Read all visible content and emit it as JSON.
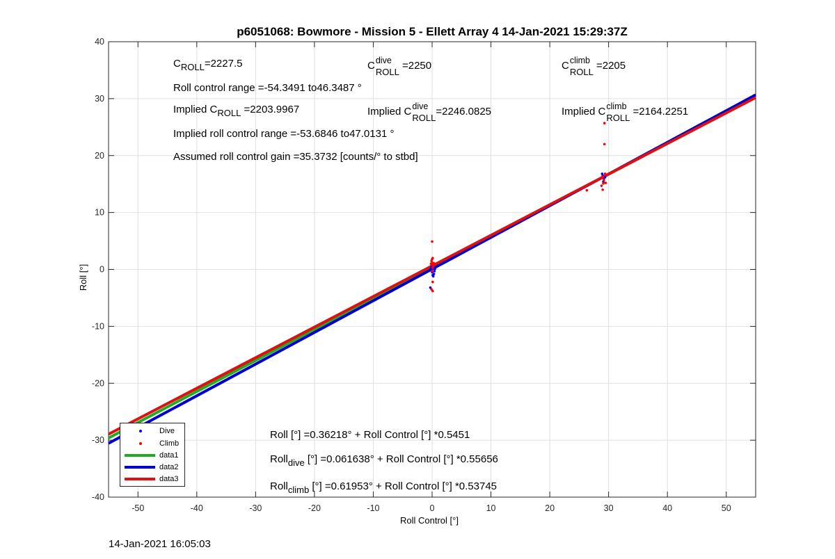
{
  "chart_data": {
    "type": "scatter",
    "title": "p6051068: Bowmore - Mission 5 - Ellett Array 4 14-Jan-2021 15:29:37Z",
    "xlabel": "Roll Control [°]",
    "ylabel": "Roll [°]",
    "xlim": [
      -55,
      55
    ],
    "ylim": [
      -40,
      40
    ],
    "xticks": [
      -50,
      -40,
      -30,
      -20,
      -10,
      0,
      10,
      20,
      30,
      40,
      50
    ],
    "yticks": [
      -40,
      -30,
      -20,
      -10,
      0,
      10,
      20,
      30,
      40
    ],
    "grid": true,
    "legend_position": "bottom-left",
    "series": [
      {
        "name": "Dive",
        "kind": "points",
        "color": "#0000ff",
        "points": [
          [
            0,
            0
          ],
          [
            0,
            -0.5
          ],
          [
            0,
            0.5
          ],
          [
            0.1,
            -1
          ],
          [
            0.2,
            0.3
          ],
          [
            -0.1,
            -0.2
          ],
          [
            0.3,
            -0.8
          ],
          [
            -0.2,
            0.2
          ],
          [
            0.1,
            0.8
          ],
          [
            0.4,
            -0.3
          ],
          [
            -0.3,
            -3.2
          ],
          [
            0.2,
            -1.2
          ],
          [
            0.5,
            0.1
          ],
          [
            -0.1,
            0.6
          ],
          [
            0.3,
            0.4
          ],
          [
            29,
            16.5
          ],
          [
            29.2,
            15.9
          ],
          [
            29.4,
            16.2
          ],
          [
            29.1,
            15.4
          ],
          [
            28.9,
            16.8
          ]
        ]
      },
      {
        "name": "Climb",
        "kind": "points",
        "color": "#ff0000",
        "points": [
          [
            0,
            0.8
          ],
          [
            0,
            1.2
          ],
          [
            0,
            1.8
          ],
          [
            0.1,
            0.3
          ],
          [
            -0.1,
            1.5
          ],
          [
            0,
            -0.3
          ],
          [
            0.1,
            -2.2
          ],
          [
            -0.1,
            -3.5
          ],
          [
            0.1,
            -3.8
          ],
          [
            0,
            4.9
          ],
          [
            0.2,
            0.6
          ],
          [
            -0.2,
            1.0
          ],
          [
            0.1,
            2.0
          ],
          [
            0.3,
            1.1
          ],
          [
            29.3,
            25.7
          ],
          [
            29.3,
            22
          ],
          [
            29,
            16.3
          ],
          [
            29.2,
            15.7
          ],
          [
            29.5,
            15.2
          ],
          [
            28.8,
            14.7
          ],
          [
            29,
            14
          ],
          [
            26.3,
            13.9
          ],
          [
            29.4,
            16.8
          ],
          [
            29.1,
            15.1
          ],
          [
            28.9,
            16.1
          ]
        ]
      },
      {
        "name": "data1",
        "kind": "fit",
        "color": "#22aa22",
        "intercept": 0.36218,
        "slope": 0.5451
      },
      {
        "name": "data2",
        "kind": "fit",
        "color": "#0000cc",
        "intercept": 0.061638,
        "slope": 0.55656
      },
      {
        "name": "data3",
        "kind": "fit",
        "color": "#dd1111",
        "intercept": 0.61953,
        "slope": 0.53745
      }
    ]
  },
  "annotations": {
    "c": "C",
    "roll_sub": "ROLL",
    "dive_sup": "dive",
    "climb_sup": "climb",
    "c_roll_value": "=2227.5",
    "c_dive_value": "=2250",
    "c_climb_value": "=2205",
    "roll_range": "Roll control range =-54.3491 to46.3487 °",
    "implied": "Implied",
    "implied_c_roll_value": "=2203.9967",
    "implied_c_dive_value": "=2246.0825",
    "implied_c_climb_value": "=2164.2251",
    "implied_range": "Implied roll control range =-53.6846 to47.0131 °",
    "gain": "Assumed roll control gain =35.3732 [counts/° to stbd]",
    "roll_word": "Roll",
    "dive_sub": "dive",
    "climb_sub": "climb",
    "fit_all": "Roll [°] =0.36218° + Roll Control [°] *0.5451",
    "fit_dive_rest": " [°] =0.061638° + Roll Control [°] *0.55656",
    "fit_climb_rest": " [°] =0.61953° + Roll Control [°] *0.53745"
  },
  "footer": {
    "timestamp": "14-Jan-2021 16:05:03"
  }
}
